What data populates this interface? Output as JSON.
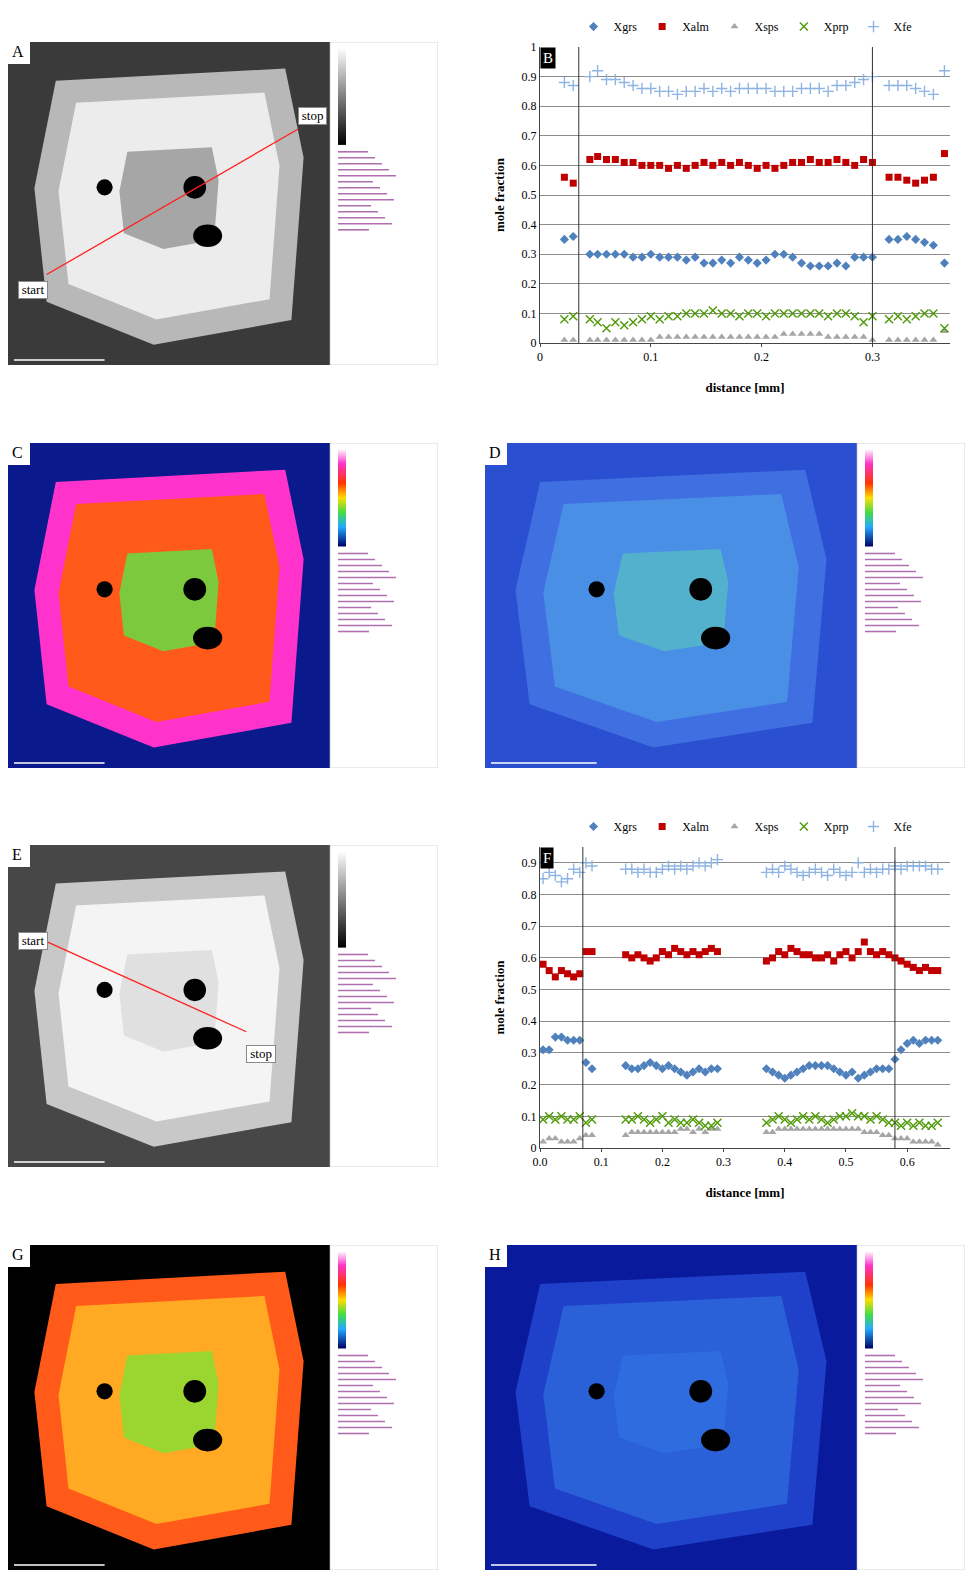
{
  "image_panels": [
    {
      "letter": "A",
      "labels": [
        "start",
        "stop"
      ]
    },
    {
      "letter": "C"
    },
    {
      "letter": "D"
    },
    {
      "letter": "E",
      "labels": [
        "start",
        "stop"
      ]
    },
    {
      "letter": "G"
    },
    {
      "letter": "H"
    }
  ],
  "chart_data": [
    {
      "panel": "B",
      "type": "scatter",
      "x_label": "distance [mm]",
      "y_label": "mole fraction",
      "xlim": [
        0,
        0.37
      ],
      "ylim": [
        0,
        1
      ],
      "xticks": [
        0,
        0.1,
        0.2,
        0.3
      ],
      "yticks": [
        0,
        0.1,
        0.2,
        0.3,
        0.4,
        0.5,
        0.6,
        0.7,
        0.8,
        0.9,
        1
      ],
      "grid": true,
      "legend": "top",
      "vlines": [
        0.035,
        0.3
      ],
      "x": [
        0.022,
        0.03,
        0.045,
        0.052,
        0.06,
        0.068,
        0.076,
        0.084,
        0.092,
        0.1,
        0.108,
        0.116,
        0.124,
        0.132,
        0.14,
        0.148,
        0.156,
        0.164,
        0.172,
        0.18,
        0.188,
        0.196,
        0.204,
        0.212,
        0.22,
        0.228,
        0.236,
        0.244,
        0.252,
        0.26,
        0.268,
        0.276,
        0.284,
        0.292,
        0.3,
        0.315,
        0.323,
        0.331,
        0.339,
        0.347,
        0.355,
        0.365
      ],
      "series": [
        {
          "name": "Xgrs",
          "color": "#4f81bd",
          "marker": "diamond",
          "values": [
            0.35,
            0.36,
            0.3,
            0.3,
            0.3,
            0.3,
            0.3,
            0.29,
            0.29,
            0.3,
            0.29,
            0.29,
            0.29,
            0.28,
            0.29,
            0.27,
            0.27,
            0.28,
            0.27,
            0.29,
            0.28,
            0.27,
            0.28,
            0.3,
            0.3,
            0.29,
            0.27,
            0.26,
            0.26,
            0.26,
            0.27,
            0.26,
            0.29,
            0.29,
            0.29,
            0.35,
            0.35,
            0.36,
            0.35,
            0.34,
            0.33,
            0.27
          ]
        },
        {
          "name": "Xalm",
          "color": "#c00000",
          "marker": "square",
          "values": [
            0.56,
            0.54,
            0.62,
            0.63,
            0.62,
            0.62,
            0.61,
            0.61,
            0.6,
            0.6,
            0.6,
            0.59,
            0.6,
            0.59,
            0.6,
            0.61,
            0.6,
            0.61,
            0.6,
            0.61,
            0.6,
            0.59,
            0.6,
            0.59,
            0.6,
            0.61,
            0.61,
            0.62,
            0.61,
            0.61,
            0.62,
            0.61,
            0.6,
            0.62,
            0.61,
            0.56,
            0.56,
            0.55,
            0.54,
            0.55,
            0.56,
            0.64
          ]
        },
        {
          "name": "Xsps",
          "color": "#a6a6a6",
          "marker": "triangle-up",
          "values": [
            0.01,
            0.01,
            0.01,
            0.01,
            0.01,
            0.01,
            0.01,
            0.01,
            0.01,
            0.01,
            0.02,
            0.02,
            0.02,
            0.02,
            0.02,
            0.02,
            0.02,
            0.02,
            0.02,
            0.02,
            0.02,
            0.02,
            0.02,
            0.02,
            0.03,
            0.03,
            0.03,
            0.03,
            0.03,
            0.02,
            0.02,
            0.02,
            0.02,
            0.02,
            0.01,
            0.01,
            0.01,
            0.01,
            0.01,
            0.01,
            0.01,
            0.04
          ]
        },
        {
          "name": "Xprp",
          "color": "#4e9a06",
          "marker": "x-thin",
          "values": [
            0.08,
            0.09,
            0.08,
            0.07,
            0.05,
            0.07,
            0.06,
            0.07,
            0.08,
            0.09,
            0.08,
            0.09,
            0.09,
            0.1,
            0.1,
            0.1,
            0.11,
            0.1,
            0.1,
            0.09,
            0.1,
            0.1,
            0.09,
            0.1,
            0.1,
            0.1,
            0.1,
            0.1,
            0.1,
            0.09,
            0.1,
            0.1,
            0.09,
            0.07,
            0.09,
            0.08,
            0.09,
            0.08,
            0.09,
            0.1,
            0.1,
            0.05
          ]
        },
        {
          "name": "Xfe",
          "color": "#8db4e2",
          "marker": "cross-thin",
          "values": [
            0.88,
            0.87,
            0.9,
            0.92,
            0.89,
            0.89,
            0.88,
            0.87,
            0.86,
            0.86,
            0.85,
            0.85,
            0.84,
            0.85,
            0.85,
            0.86,
            0.85,
            0.86,
            0.85,
            0.86,
            0.86,
            0.86,
            0.86,
            0.85,
            0.85,
            0.85,
            0.86,
            0.86,
            0.86,
            0.85,
            0.87,
            0.87,
            0.88,
            0.89,
            0.9,
            0.87,
            0.87,
            0.87,
            0.86,
            0.85,
            0.84,
            0.92
          ]
        }
      ]
    },
    {
      "panel": "F",
      "type": "scatter",
      "x_label": "distance [mm]",
      "y_label": "mole fraction",
      "xlim": [
        0,
        0.67
      ],
      "ylim": [
        0,
        0.95
      ],
      "xticks": [
        {
          "value": 0,
          "label": "0.0"
        },
        0.1,
        0.2,
        0.3,
        0.4,
        0.5,
        0.6
      ],
      "yticks": [
        0,
        0.1,
        0.2,
        0.3,
        0.4,
        0.5,
        0.6,
        0.7,
        0.8,
        0.9
      ],
      "grid": true,
      "legend": "top",
      "vlines": [
        0.07,
        0.58
      ],
      "x": [
        0.005,
        0.015,
        0.025,
        0.035,
        0.045,
        0.055,
        0.065,
        0.075,
        0.085,
        0.11,
        0.14,
        0.15,
        0.16,
        0.17,
        0.18,
        0.19,
        0.2,
        0.21,
        0.22,
        0.23,
        0.24,
        0.25,
        0.26,
        0.27,
        0.28,
        0.29,
        0.33,
        0.37,
        0.38,
        0.39,
        0.4,
        0.41,
        0.42,
        0.43,
        0.44,
        0.45,
        0.46,
        0.47,
        0.48,
        0.49,
        0.5,
        0.51,
        0.52,
        0.53,
        0.54,
        0.55,
        0.56,
        0.57,
        0.58,
        0.59,
        0.6,
        0.61,
        0.62,
        0.63,
        0.64,
        0.65
      ],
      "series": [
        {
          "name": "Xgrs",
          "color": "#4f81bd",
          "marker": "diamond",
          "values": [
            0.31,
            0.31,
            0.35,
            0.35,
            0.34,
            0.34,
            0.34,
            0.27,
            0.25,
            null,
            0.26,
            0.25,
            0.25,
            0.26,
            0.27,
            0.26,
            0.25,
            0.26,
            0.25,
            0.24,
            0.23,
            0.24,
            0.25,
            0.24,
            0.25,
            0.25,
            null,
            0.25,
            0.24,
            0.23,
            0.22,
            0.23,
            0.24,
            0.25,
            0.26,
            0.26,
            0.26,
            0.26,
            0.25,
            0.24,
            0.23,
            0.24,
            0.22,
            0.23,
            0.24,
            0.25,
            0.25,
            0.25,
            0.28,
            0.31,
            0.33,
            0.34,
            0.33,
            0.34,
            0.34,
            0.34
          ]
        },
        {
          "name": "Xalm",
          "color": "#c00000",
          "marker": "square",
          "values": [
            0.58,
            0.56,
            0.54,
            0.56,
            0.55,
            0.54,
            0.55,
            0.62,
            0.62,
            null,
            0.61,
            0.6,
            0.61,
            0.6,
            0.59,
            0.6,
            0.62,
            0.61,
            0.63,
            0.62,
            0.61,
            0.62,
            0.61,
            0.62,
            0.63,
            0.62,
            null,
            0.59,
            0.6,
            0.62,
            0.61,
            0.63,
            0.62,
            0.61,
            0.61,
            0.6,
            0.6,
            0.61,
            0.59,
            0.61,
            0.62,
            0.6,
            0.62,
            0.65,
            0.62,
            0.61,
            0.62,
            0.61,
            0.6,
            0.59,
            0.58,
            0.57,
            0.56,
            0.57,
            0.56,
            0.56
          ]
        },
        {
          "name": "Xsps",
          "color": "#a6a6a6",
          "marker": "triangle-up",
          "values": [
            0.02,
            0.03,
            0.03,
            0.02,
            0.02,
            0.02,
            0.03,
            0.04,
            0.04,
            null,
            0.04,
            0.05,
            0.05,
            0.05,
            0.05,
            0.05,
            0.05,
            0.05,
            0.05,
            0.06,
            0.06,
            0.05,
            0.06,
            0.05,
            0.06,
            0.06,
            null,
            0.05,
            0.05,
            0.06,
            0.06,
            0.06,
            0.06,
            0.06,
            0.06,
            0.06,
            0.06,
            0.06,
            0.06,
            0.06,
            0.06,
            0.06,
            0.06,
            0.05,
            0.05,
            0.05,
            0.04,
            0.04,
            0.03,
            0.03,
            0.03,
            0.02,
            0.02,
            0.02,
            0.02,
            0.01
          ]
        },
        {
          "name": "Xprp",
          "color": "#4e9a06",
          "marker": "x-thin",
          "values": [
            0.09,
            0.1,
            0.09,
            0.1,
            0.09,
            0.09,
            0.1,
            0.08,
            0.09,
            null,
            0.09,
            0.09,
            0.1,
            0.09,
            0.08,
            0.09,
            0.1,
            0.08,
            0.09,
            0.08,
            0.08,
            0.09,
            0.08,
            0.07,
            0.07,
            0.08,
            null,
            0.08,
            0.09,
            0.1,
            0.09,
            0.08,
            0.09,
            0.1,
            0.09,
            0.1,
            0.09,
            0.08,
            0.09,
            0.1,
            0.1,
            0.11,
            0.1,
            0.1,
            0.09,
            0.1,
            0.09,
            0.08,
            0.08,
            0.07,
            0.08,
            0.07,
            0.08,
            0.07,
            0.07,
            0.08
          ]
        },
        {
          "name": "Xfe",
          "color": "#8db4e2",
          "marker": "cross-thin",
          "values": [
            0.85,
            0.87,
            0.86,
            0.84,
            0.85,
            0.88,
            0.87,
            0.9,
            0.89,
            null,
            0.88,
            0.88,
            0.87,
            0.88,
            0.87,
            0.87,
            0.88,
            0.89,
            0.88,
            0.89,
            0.88,
            0.89,
            0.9,
            0.89,
            0.9,
            0.91,
            null,
            0.87,
            0.88,
            0.87,
            0.89,
            0.88,
            0.87,
            0.86,
            0.87,
            0.88,
            0.87,
            0.86,
            0.88,
            0.87,
            0.86,
            0.87,
            0.9,
            0.87,
            0.88,
            0.87,
            0.88,
            0.88,
            0.89,
            0.88,
            0.89,
            0.89,
            0.89,
            0.89,
            0.88,
            0.88
          ]
        }
      ]
    }
  ]
}
